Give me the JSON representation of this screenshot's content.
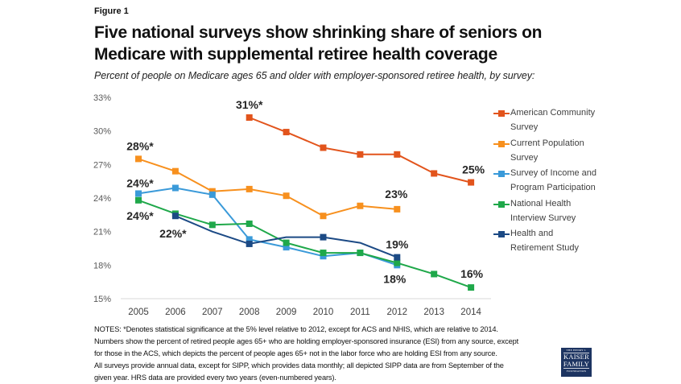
{
  "figure_label": "Figure 1",
  "title_line1": "Five national surveys show shrinking share of seniors on",
  "title_line2": "Medicare with supplemental retiree health coverage",
  "subtitle": "Percent of people on Medicare ages 65 and older with employer-sponsored retiree health, by survey:",
  "chart_data": {
    "type": "line",
    "title": "Five national surveys show shrinking share of seniors on Medicare with supplemental retiree health coverage",
    "subtitle": "Percent of people on Medicare ages 65 and older with employer-sponsored retiree health, by survey:",
    "xlabel": "",
    "ylabel": "",
    "x": [
      2005,
      2006,
      2007,
      2008,
      2009,
      2010,
      2011,
      2012,
      2013,
      2014
    ],
    "x_tick_labels": [
      "2005",
      "2006",
      "2007",
      "2008",
      "2009",
      "2010",
      "2011",
      "2012",
      "2013",
      "2014"
    ],
    "ylim": [
      15,
      33
    ],
    "y_ticks": [
      15,
      18,
      21,
      24,
      27,
      30,
      33
    ],
    "y_tick_labels": [
      "15%",
      "18%",
      "21%",
      "24%",
      "27%",
      "30%",
      "33%"
    ],
    "grid": false,
    "legend_position": "right",
    "series": [
      {
        "name": "American Community Survey",
        "color": "#E2541C",
        "values": [
          null,
          null,
          null,
          31.2,
          29.9,
          28.5,
          27.9,
          27.9,
          26.2,
          25.4
        ]
      },
      {
        "name": "Current Population Survey",
        "color": "#F7901E",
        "values": [
          27.5,
          26.4,
          24.6,
          24.8,
          24.2,
          22.4,
          23.3,
          23.0,
          null,
          null
        ]
      },
      {
        "name": "Survey of Income and Program Participation",
        "color": "#3A9AD9",
        "values": [
          24.4,
          24.9,
          24.3,
          20.3,
          19.6,
          18.8,
          19.1,
          18.0,
          null,
          null
        ]
      },
      {
        "name": "National Health Interview Survey",
        "color": "#1FA84A",
        "values": [
          23.8,
          22.6,
          21.6,
          21.7,
          20.0,
          19.1,
          19.1,
          18.2,
          17.2,
          16.0
        ]
      },
      {
        "name": "Health and Retirement Study",
        "color": "#1C4A85",
        "values": [
          null,
          22.4,
          null,
          19.9,
          null,
          20.5,
          null,
          18.7,
          null,
          null
        ],
        "interpolated_line_values": [
          null,
          22.4,
          21.0,
          19.9,
          20.5,
          20.5,
          20.0,
          18.7,
          null,
          null
        ]
      }
    ],
    "annotations": [
      {
        "text": "31%*",
        "series": "American Community Survey",
        "x": 2008
      },
      {
        "text": "25%",
        "series": "American Community Survey",
        "x": 2014
      },
      {
        "text": "28%*",
        "series": "Current Population Survey",
        "x": 2005
      },
      {
        "text": "23%",
        "series": "Current Population Survey",
        "x": 2012
      },
      {
        "text": "24%*",
        "series": "Survey of Income and Program Participation",
        "x": 2005
      },
      {
        "text": "18%",
        "series": "Survey of Income and Program Participation",
        "x": 2012
      },
      {
        "text": "24%*",
        "series": "National Health Interview Survey",
        "x": 2005
      },
      {
        "text": "16%",
        "series": "National Health Interview Survey",
        "x": 2014
      },
      {
        "text": "22%*",
        "series": "Health and Retirement Study",
        "x": 2006
      },
      {
        "text": "19%",
        "series": "Health and Retirement Study",
        "x": 2012
      }
    ]
  },
  "legend": [
    {
      "label": "American Community\nSurvey",
      "color": "#E2541C"
    },
    {
      "label": "Current Population\nSurvey",
      "color": "#F7901E"
    },
    {
      "label": "Survey of Income and\nProgram Participation",
      "color": "#3A9AD9"
    },
    {
      "label": "National Health\nInterview Survey",
      "color": "#1FA84A"
    },
    {
      "label": "Health and\nRetirement Study",
      "color": "#1C4A85"
    }
  ],
  "notes": [
    "NOTES: *Denotes statistical significance at the 5% level relative to 2012, except for ACS and NHIS, which are relative to 2014.",
    "Numbers show the percent of retired people ages 65+ who are holding employer-sponsored insurance (ESI) from any source, except",
    "for those in the ACS, which depicts the percent of people ages 65+ not in the labor force who are holding ESI from any source.",
    "All surveys provide annual data, except for SIPP, which provides data monthly; all depicted SIPP data are from September of the",
    "given year. HRS data are provided every two years (even-numbered years)."
  ],
  "logo": {
    "line1": "THE HENRY J.",
    "line2": "KAISER",
    "line3": "FAMILY",
    "line4": "FOUNDATION",
    "color": "#1D3461"
  }
}
